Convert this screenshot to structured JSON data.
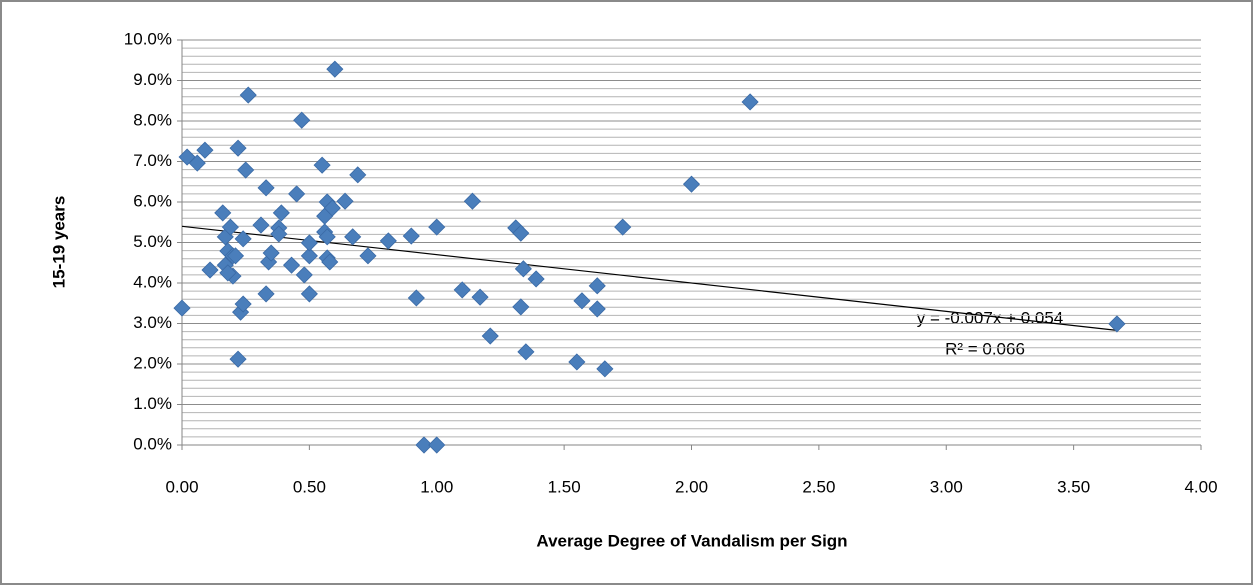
{
  "chart_data": {
    "type": "scatter",
    "x_label": "Average Degree of Vandalism per Sign",
    "y_label": "15-19 years",
    "x": [
      0.0,
      0.02,
      0.06,
      0.09,
      0.11,
      0.16,
      0.17,
      0.17,
      0.18,
      0.19,
      0.2,
      0.2,
      0.21,
      0.18,
      0.22,
      0.22,
      0.23,
      0.24,
      0.24,
      0.25,
      0.26,
      0.31,
      0.33,
      0.33,
      0.34,
      0.35,
      0.38,
      0.39,
      0.38,
      0.43,
      0.45,
      0.47,
      0.48,
      0.5,
      0.5,
      0.5,
      0.55,
      0.56,
      0.56,
      0.57,
      0.57,
      0.57,
      0.58,
      0.59,
      0.6,
      0.64,
      0.67,
      0.69,
      0.73,
      0.81,
      0.9,
      0.92,
      0.95,
      1.0,
      1.0,
      1.1,
      1.14,
      1.17,
      1.21,
      1.31,
      1.33,
      1.33,
      1.34,
      1.35,
      1.39,
      1.55,
      1.57,
      1.63,
      1.63,
      1.66,
      1.73,
      2.0,
      2.23,
      3.67
    ],
    "values": [
      3.38,
      7.11,
      6.96,
      7.28,
      4.32,
      5.73,
      5.14,
      4.44,
      4.79,
      5.38,
      4.17,
      4.67,
      4.67,
      4.25,
      7.33,
      2.12,
      3.28,
      3.48,
      5.09,
      6.79,
      8.64,
      5.43,
      6.35,
      3.73,
      4.52,
      4.74,
      5.36,
      5.73,
      5.21,
      4.44,
      6.2,
      8.02,
      4.2,
      3.73,
      4.67,
      4.99,
      6.91,
      5.65,
      5.26,
      6.0,
      5.14,
      4.62,
      4.52,
      5.85,
      9.28,
      6.02,
      5.14,
      6.67,
      4.67,
      5.04,
      5.16,
      3.63,
      0.0,
      0.0,
      5.38,
      3.83,
      6.02,
      3.65,
      2.69,
      5.36,
      5.23,
      3.41,
      4.35,
      2.3,
      4.1,
      2.05,
      3.56,
      3.93,
      3.36,
      1.88,
      5.38,
      6.44,
      8.47,
      2.99
    ],
    "color": "#4a7ebb",
    "xlim": [
      0,
      4
    ],
    "xticks": [
      {
        "value": 0,
        "label": "0.00"
      },
      {
        "value": 0.5,
        "label": "0.50"
      },
      {
        "value": 1,
        "label": "1.00"
      },
      {
        "value": 1.5,
        "label": "1.50"
      },
      {
        "value": 2,
        "label": "2.00"
      },
      {
        "value": 2.5,
        "label": "2.50"
      },
      {
        "value": 3,
        "label": "3.00"
      },
      {
        "value": 3.5,
        "label": "3.50"
      },
      {
        "value": 4,
        "label": "4.00"
      }
    ],
    "ylim": [
      0,
      10
    ],
    "yticks": [
      {
        "value": 0,
        "label": "0.0%"
      },
      {
        "value": 1,
        "label": "1.0%"
      },
      {
        "value": 2,
        "label": "2.0%"
      },
      {
        "value": 3,
        "label": "3.0%"
      },
      {
        "value": 4,
        "label": "4.0%"
      },
      {
        "value": 5,
        "label": "5.0%"
      },
      {
        "value": 6,
        "label": "6.0%"
      },
      {
        "value": 7,
        "label": "7.0%"
      },
      {
        "value": 8,
        "label": "8.0%"
      },
      {
        "value": 9,
        "label": "9.0%"
      },
      {
        "value": 10,
        "label": "10.0%"
      }
    ],
    "grid": true,
    "trendline": {
      "slope": -0.7,
      "intercept": 5.4
    },
    "annotations": [
      "y = -0.007x + 0.054",
      "R² = 0.066"
    ]
  }
}
